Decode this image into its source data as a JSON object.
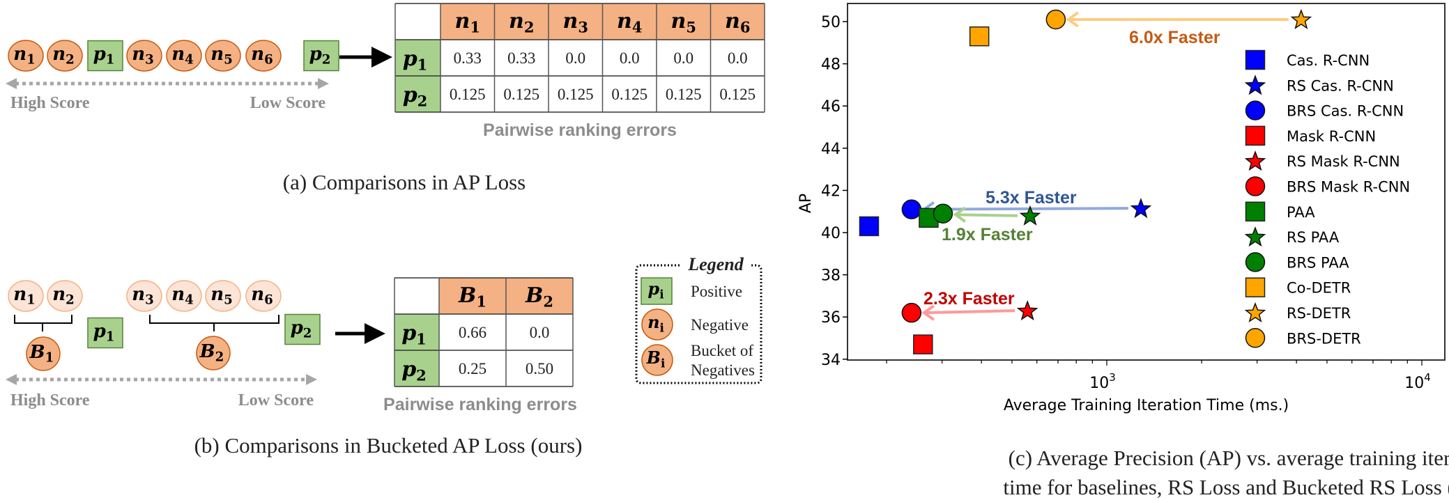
{
  "colors": {
    "positive_fill": "#a9d18e",
    "positive_border": "#548235",
    "negative_fill": "#f4b183",
    "negative_border": "#c55a11",
    "negative_light_fill": "#fce4d6",
    "negative_light_border": "#f4b183",
    "score_arrow": "#a6a6a6"
  },
  "panel_a": {
    "sequence": [
      {
        "kind": "negative",
        "base": "n",
        "sub": "1"
      },
      {
        "kind": "negative",
        "base": "n",
        "sub": "2"
      },
      {
        "kind": "positive",
        "base": "p",
        "sub": "1"
      },
      {
        "kind": "negative",
        "base": "n",
        "sub": "3"
      },
      {
        "kind": "negative",
        "base": "n",
        "sub": "4"
      },
      {
        "kind": "negative",
        "base": "n",
        "sub": "5"
      },
      {
        "kind": "negative",
        "base": "n",
        "sub": "6"
      },
      {
        "kind": "positive",
        "base": "p",
        "sub": "2"
      }
    ],
    "high_score": "High Score",
    "low_score": "Low Score",
    "table": {
      "columns": [
        {
          "base": "n",
          "sub": "1"
        },
        {
          "base": "n",
          "sub": "2"
        },
        {
          "base": "n",
          "sub": "3"
        },
        {
          "base": "n",
          "sub": "4"
        },
        {
          "base": "n",
          "sub": "5"
        },
        {
          "base": "n",
          "sub": "6"
        }
      ],
      "rows": [
        {
          "label": {
            "base": "p",
            "sub": "1"
          },
          "values": [
            "0.33",
            "0.33",
            "0.0",
            "0.0",
            "0.0",
            "0.0"
          ]
        },
        {
          "label": {
            "base": "p",
            "sub": "2"
          },
          "values": [
            "0.125",
            "0.125",
            "0.125",
            "0.125",
            "0.125",
            "0.125"
          ]
        }
      ],
      "caption": "Pairwise ranking errors"
    },
    "caption": "(a) Comparisons in AP Loss"
  },
  "panel_b": {
    "negatives": [
      {
        "base": "n",
        "sub": "1"
      },
      {
        "base": "n",
        "sub": "2"
      },
      {
        "base": "n",
        "sub": "3"
      },
      {
        "base": "n",
        "sub": "4"
      },
      {
        "base": "n",
        "sub": "5"
      },
      {
        "base": "n",
        "sub": "6"
      }
    ],
    "positives": [
      {
        "base": "p",
        "sub": "1"
      },
      {
        "base": "p",
        "sub": "2"
      }
    ],
    "buckets": [
      {
        "base": "B",
        "sub": "1"
      },
      {
        "base": "B",
        "sub": "2"
      }
    ],
    "high_score": "High Score",
    "low_score": "Low Score",
    "table": {
      "columns": [
        {
          "base": "B",
          "sub": "1"
        },
        {
          "base": "B",
          "sub": "2"
        }
      ],
      "rows": [
        {
          "label": {
            "base": "p",
            "sub": "1"
          },
          "values": [
            "0.66",
            "0.0"
          ]
        },
        {
          "label": {
            "base": "p",
            "sub": "2"
          },
          "values": [
            "0.25",
            "0.50"
          ]
        }
      ],
      "caption": "Pairwise ranking errors"
    },
    "legend": {
      "title": "Legend",
      "items": [
        {
          "kind": "positive",
          "base": "p",
          "sub": "i",
          "label": [
            "Positive"
          ]
        },
        {
          "kind": "negative",
          "base": "n",
          "sub": "i",
          "label": [
            "Negative"
          ]
        },
        {
          "kind": "negative",
          "base": "B",
          "sub": "i",
          "label": [
            "Bucket of",
            "Negatives"
          ]
        }
      ]
    },
    "caption": "(b) Comparisons in Bucketed AP Loss (ours)"
  },
  "chart_data": {
    "type": "scatter",
    "xlabel": "Average Training Iteration Time (ms.)",
    "ylabel": "AP",
    "xscale": "log",
    "xlim": [
      150,
      11840
    ],
    "ylim": [
      33.95,
      50.85
    ],
    "xticks": [
      {
        "value": 1000,
        "label": "10",
        "exp": "3"
      },
      {
        "value": 10000,
        "label": "10",
        "exp": "4"
      }
    ],
    "yticks": [
      34,
      36,
      38,
      40,
      42,
      44,
      46,
      48,
      50
    ],
    "grid": false,
    "legend_position": "right",
    "series": [
      {
        "name": "Cas. R-CNN",
        "marker": "square",
        "color": "#0000ff",
        "x": 176,
        "y": 40.3
      },
      {
        "name": "RS Cas. R-CNN",
        "marker": "star",
        "color": "#0000ff",
        "x": 1283,
        "y": 41.15
      },
      {
        "name": "BRS Cas. R-CNN",
        "marker": "circle",
        "color": "#0000ff",
        "x": 240,
        "y": 41.1
      },
      {
        "name": "Mask R-CNN",
        "marker": "square",
        "color": "#ff0000",
        "x": 261,
        "y": 34.7
      },
      {
        "name": "RS Mask R-CNN",
        "marker": "star",
        "color": "#ff0000",
        "x": 560,
        "y": 36.3
      },
      {
        "name": "BRS Mask R-CNN",
        "marker": "circle",
        "color": "#ff0000",
        "x": 240,
        "y": 36.2
      },
      {
        "name": "PAA",
        "marker": "square",
        "color": "#008000",
        "x": 272,
        "y": 40.7
      },
      {
        "name": "RS PAA",
        "marker": "star",
        "color": "#008000",
        "x": 571,
        "y": 40.8
      },
      {
        "name": "BRS PAA",
        "marker": "circle",
        "color": "#008000",
        "x": 302,
        "y": 40.9
      },
      {
        "name": "Co-DETR",
        "marker": "square",
        "color": "#ffa500",
        "x": 394,
        "y": 49.3
      },
      {
        "name": "RS-DETR",
        "marker": "star",
        "color": "#ffa500",
        "x": 4140,
        "y": 50.1
      },
      {
        "name": "BRS-DETR",
        "marker": "circle",
        "color": "#ffa500",
        "x": 689,
        "y": 50.1
      }
    ],
    "annotations": [
      {
        "text": "6.0x Faster",
        "color": "#c55a11",
        "arrow_color": "#ffcc80",
        "from": {
          "x": 4140,
          "y": 50.1
        },
        "to": {
          "x": 689,
          "y": 50.1
        }
      },
      {
        "text": "5.3x Faster",
        "color": "#2f5597",
        "arrow_color": "#8faadc",
        "from": {
          "x": 1283,
          "y": 41.15
        },
        "to": {
          "x": 240,
          "y": 41.1
        }
      },
      {
        "text": "1.9x Faster",
        "color": "#548235",
        "arrow_color": "#a9d18e",
        "from": {
          "x": 571,
          "y": 40.8
        },
        "to": {
          "x": 302,
          "y": 40.85
        }
      },
      {
        "text": "2.3x Faster",
        "color": "#c00000",
        "arrow_color": "#ff9999",
        "from": {
          "x": 560,
          "y": 36.3
        },
        "to": {
          "x": 240,
          "y": 36.2
        }
      }
    ]
  },
  "panel_c": {
    "caption": [
      "(c) Average Precision (AP) vs. average training iteration",
      "time for baselines, RS Loss and Bucketed RS Loss (ours)"
    ]
  }
}
